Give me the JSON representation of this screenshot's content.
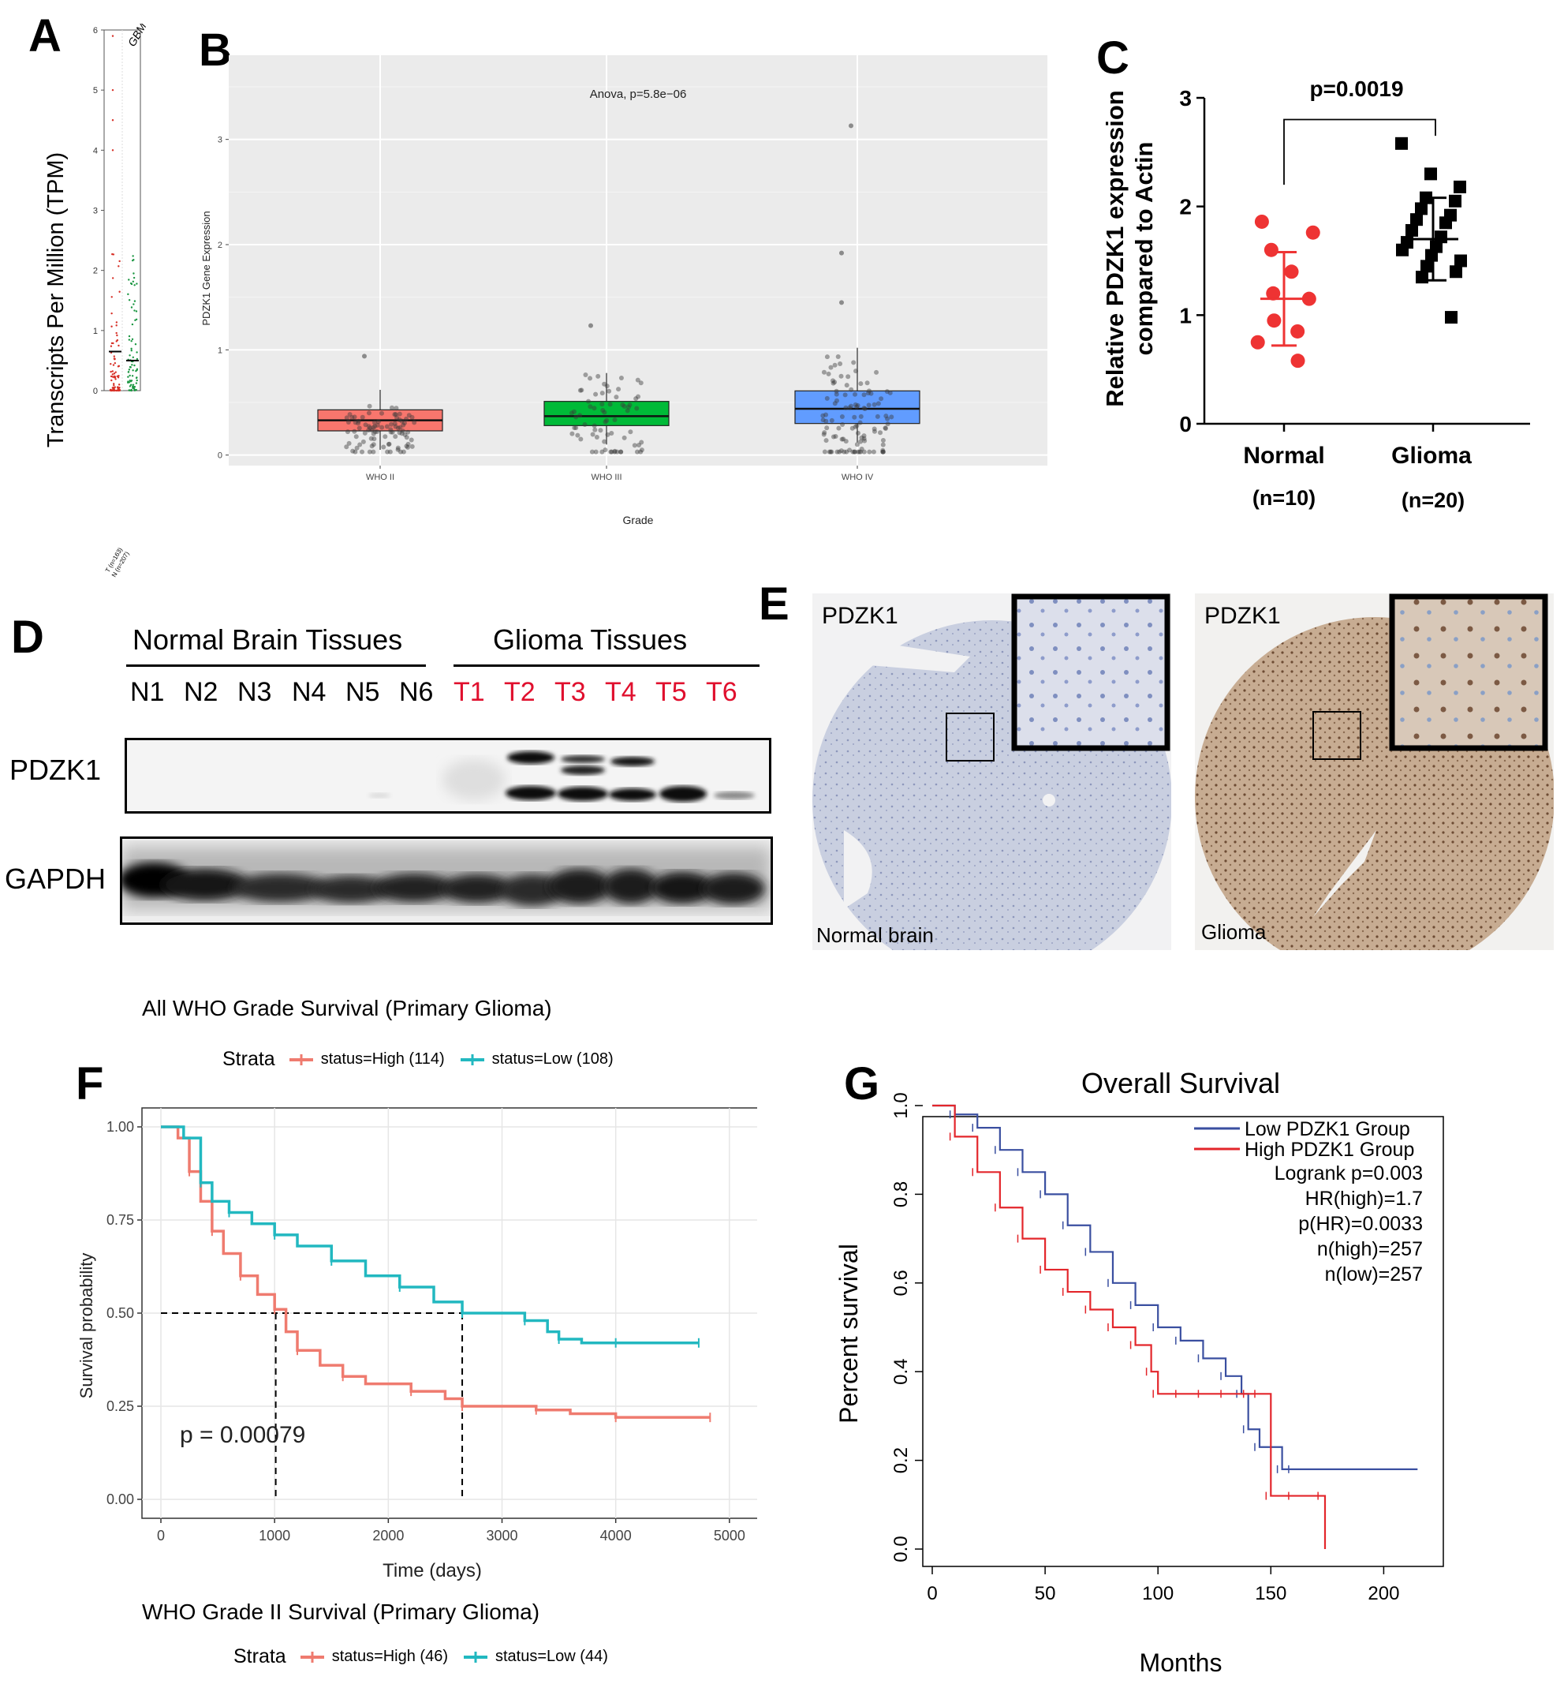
{
  "panels": {
    "A": {
      "letter": "A",
      "ylabel": "Transcripts Per Million (TPM)",
      "yticks": [
        "0",
        "1",
        "2",
        "3",
        "4",
        "5",
        "6"
      ],
      "column_label": "GBM",
      "x_labels": [
        "T (n=163)",
        "N (n=207)"
      ]
    },
    "B": {
      "letter": "B",
      "annotation": "Anova, p=5.8e−06",
      "ylabel": "PDZK1 Gene Expression",
      "xlabel": "Grade",
      "yticks": [
        "0",
        "1",
        "2",
        "3"
      ]
    },
    "C": {
      "letter": "C",
      "ylabel_line1": "Relative PDZK1 expression",
      "ylabel_line2": "compared to Actin",
      "pvalue": "p=0.0019",
      "yticks": [
        "0",
        "1",
        "2",
        "3"
      ],
      "groups": [
        {
          "name": "Normal",
          "n": "(n=10)"
        },
        {
          "name": "Glioma",
          "n": "(n=20)"
        }
      ]
    },
    "D": {
      "letter": "D",
      "normal_header": "Normal Brain Tissues",
      "glioma_header": "Glioma Tissues",
      "lanes_normal": [
        "N1",
        "N2",
        "N3",
        "N4",
        "N5",
        "N6"
      ],
      "lanes_tumor": [
        "T1",
        "T2",
        "T3",
        "T4",
        "T5",
        "T6"
      ],
      "rows": [
        "PDZK1",
        "GAPDH"
      ]
    },
    "E": {
      "letter": "E",
      "left_stain": "PDZK1",
      "left_tissue": "Normal brain",
      "right_stain": "PDZK1",
      "right_tissue": "Glioma"
    },
    "F": {
      "letter": "F",
      "top_title": "All WHO Grade Survival (Primary Glioma)",
      "legend_title": "Strata",
      "legend_high": "status=High (114)",
      "legend_low": "status=Low (108)",
      "pvalue": "p = 0.00079",
      "ylabel": "Survival probability",
      "xlabel": "Time (days)",
      "bottom_title": "WHO Grade II Survival (Primary Glioma)",
      "bottom_legend_title": "Strata",
      "bottom_legend_high": "status=High (46)",
      "bottom_legend_low": "status=Low (44)"
    },
    "G": {
      "letter": "G",
      "title": "Overall Survival",
      "ylabel": "Percent survival",
      "xlabel": "Months",
      "legend_low": "Low PDZK1 Group",
      "legend_high": "High PDZK1 Group",
      "stats": [
        "Logrank p=0.003",
        "HR(high)=1.7",
        "p(HR)=0.0033",
        "n(high)=257",
        "n(low)=257"
      ]
    }
  },
  "colors": {
    "red": "#f8766d",
    "green": "#00ba38",
    "blue": "#619cff",
    "c_red": "#ee3333",
    "teal": "#22b8c0",
    "salmon": "#ef7b6f",
    "g_blue": "#3a4fa0",
    "g_red": "#e3262b",
    "lane_red": "#e0102e"
  },
  "chart_data": [
    {
      "panel": "A",
      "type": "scatter",
      "ylabel": "Transcripts Per Million (TPM)",
      "ylim": [
        0,
        6
      ],
      "series": [
        {
          "name": "T (n=163)",
          "median": 0.65
        },
        {
          "name": "N (n=207)",
          "median": 0.5
        }
      ]
    },
    {
      "panel": "B",
      "type": "box",
      "title": "Anova, p=5.8e−06",
      "xlabel": "Grade",
      "ylabel": "PDZK1 Gene Expression",
      "categories": [
        "WHO II",
        "WHO III",
        "WHO IV"
      ],
      "ylim": [
        -0.1,
        3.8
      ],
      "boxes": [
        {
          "q1": 0.23,
          "median": 0.33,
          "q3": 0.43,
          "lo": 0.05,
          "hi": 0.62
        },
        {
          "q1": 0.28,
          "median": 0.37,
          "q3": 0.51,
          "lo": 0.1,
          "hi": 0.78
        },
        {
          "q1": 0.3,
          "median": 0.44,
          "q3": 0.61,
          "lo": 0.12,
          "hi": 1.02
        }
      ],
      "outliers": [
        [
          0,
          0.94
        ],
        [
          1,
          1.23
        ],
        [
          2,
          3.13
        ],
        [
          2,
          1.92
        ],
        [
          2,
          1.45
        ]
      ]
    },
    {
      "panel": "C",
      "type": "scatter",
      "categories": [
        "Normal",
        "Glioma"
      ],
      "ylim": [
        0,
        3
      ],
      "series": [
        {
          "name": "Normal",
          "values": [
            1.86,
            1.76,
            1.6,
            1.4,
            1.2,
            1.15,
            0.95,
            0.85,
            0.75,
            0.58
          ],
          "mean": 1.15,
          "sd_lo": 0.72,
          "sd_hi": 1.58
        },
        {
          "name": "Glioma",
          "values": [
            2.58,
            2.3,
            2.18,
            2.08,
            2.05,
            1.98,
            1.92,
            1.88,
            1.85,
            1.78,
            1.72,
            1.67,
            1.63,
            1.6,
            1.55,
            1.5,
            1.45,
            1.4,
            1.35,
            0.98
          ],
          "mean": 1.7,
          "sd_lo": 1.32,
          "sd_hi": 2.08
        }
      ]
    },
    {
      "panel": "F",
      "type": "line",
      "xlabel": "Time (days)",
      "ylabel": "Survival probability",
      "xlim": [
        0,
        5000
      ],
      "ylim": [
        0,
        1
      ],
      "xticks": [
        "0",
        "1000",
        "2000",
        "3000",
        "4000",
        "5000"
      ],
      "yticks": [
        "0.00",
        "0.25",
        "0.50",
        "0.75",
        "1.00"
      ],
      "series": [
        {
          "name": "status=High (114)",
          "x": [
            0,
            150,
            250,
            350,
            450,
            550,
            700,
            850,
            1000,
            1100,
            1200,
            1400,
            1600,
            1800,
            2200,
            2500,
            2650,
            3000,
            3300,
            3600,
            4000,
            4500,
            4830
          ],
          "y": [
            1,
            0.97,
            0.88,
            0.8,
            0.72,
            0.66,
            0.6,
            0.55,
            0.51,
            0.45,
            0.4,
            0.36,
            0.33,
            0.31,
            0.29,
            0.27,
            0.25,
            0.25,
            0.24,
            0.23,
            0.22,
            0.22,
            0.22
          ]
        },
        {
          "name": "status=Low (108)",
          "x": [
            0,
            200,
            350,
            450,
            600,
            800,
            1000,
            1200,
            1500,
            1800,
            2100,
            2400,
            2650,
            3000,
            3200,
            3400,
            3500,
            3700,
            4000,
            4500,
            4730
          ],
          "y": [
            1,
            0.97,
            0.85,
            0.8,
            0.77,
            0.74,
            0.71,
            0.68,
            0.64,
            0.6,
            0.57,
            0.53,
            0.5,
            0.5,
            0.48,
            0.45,
            0.43,
            0.42,
            0.42,
            0.42,
            0.42
          ]
        }
      ],
      "median_lines": [
        1010,
        2650
      ]
    },
    {
      "panel": "G",
      "type": "line",
      "title": "Overall Survival",
      "xlabel": "Months",
      "ylabel": "Percent survival",
      "xlim": [
        0,
        220
      ],
      "ylim": [
        0,
        1
      ],
      "xticks": [
        "0",
        "50",
        "100",
        "150",
        "200"
      ],
      "yticks": [
        "0.0",
        "0.2",
        "0.4",
        "0.6",
        "0.8",
        "1.0"
      ],
      "series": [
        {
          "name": "Low PDZK1 Group",
          "x": [
            0,
            10,
            20,
            30,
            40,
            50,
            60,
            70,
            80,
            90,
            100,
            110,
            120,
            130,
            137,
            140,
            145,
            155,
            160,
            215
          ],
          "y": [
            1,
            0.98,
            0.95,
            0.9,
            0.85,
            0.8,
            0.73,
            0.67,
            0.6,
            0.55,
            0.5,
            0.47,
            0.43,
            0.39,
            0.35,
            0.27,
            0.23,
            0.18,
            0.18,
            0.18
          ]
        },
        {
          "name": "High PDZK1 Group",
          "x": [
            0,
            10,
            20,
            30,
            40,
            50,
            60,
            70,
            80,
            90,
            97,
            100,
            110,
            120,
            130,
            140,
            145,
            150,
            160,
            173,
            174
          ],
          "y": [
            1,
            0.93,
            0.85,
            0.77,
            0.7,
            0.63,
            0.58,
            0.54,
            0.5,
            0.46,
            0.4,
            0.35,
            0.35,
            0.35,
            0.35,
            0.35,
            0.35,
            0.12,
            0.12,
            0.12,
            0.0
          ]
        }
      ]
    }
  ]
}
